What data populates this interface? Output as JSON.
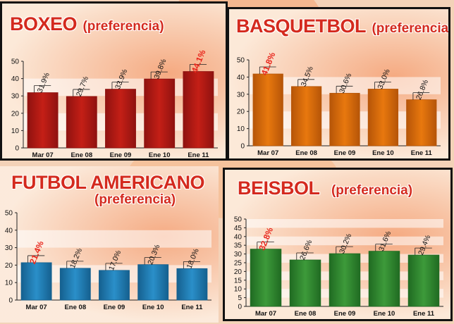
{
  "charts": [
    {
      "title": "BOXEO",
      "subtitle": "(preferencia)",
      "accent": "#d42a1e",
      "bar_color": "#c41f16",
      "bar_dark": "#8f1210",
      "highlight_label_color": "#e8251b",
      "chart_data": {
        "type": "bar",
        "title": "BOXEO (preferencia)",
        "categories": [
          "Mar 07",
          "Ene 08",
          "Ene 09",
          "Ene 10",
          "Ene 11"
        ],
        "values": [
          31.9,
          29.7,
          33.9,
          39.8,
          44.1
        ],
        "data_labels": [
          "31.9%",
          "29.7%",
          "33.9%",
          "39.8%",
          "44.1%"
        ],
        "highlight_index": 4,
        "yticks": [
          0,
          10,
          20,
          30,
          40,
          50
        ],
        "ylim": [
          0,
          50
        ],
        "xlabel": "",
        "ylabel": ""
      }
    },
    {
      "title": "BASQUETBOL",
      "subtitle": "(preferencia)",
      "accent": "#d42a1e",
      "bar_color": "#e8780e",
      "bar_dark": "#b65508",
      "highlight_label_color": "#e8251b",
      "chart_data": {
        "type": "bar",
        "title": "BASQUETBOL (preferencia)",
        "categories": [
          "Mar 07",
          "Ene 08",
          "Ene 09",
          "Ene 10",
          "Ene 11"
        ],
        "values": [
          41.8,
          34.5,
          30.6,
          33.0,
          26.8
        ],
        "data_labels": [
          "41.8%",
          "34.5%",
          "30.6%",
          "33.0%",
          "26.8%"
        ],
        "highlight_index": 0,
        "yticks": [
          0,
          10,
          20,
          30,
          40,
          50
        ],
        "ylim": [
          0,
          50
        ],
        "xlabel": "",
        "ylabel": ""
      }
    },
    {
      "title": "FUTBOL AMERICANO",
      "subtitle": "(preferencia)",
      "accent": "#d42a1e",
      "bar_color": "#2a8fc9",
      "bar_dark": "#15608f",
      "highlight_label_color": "#e8251b",
      "chart_data": {
        "type": "bar",
        "title": "FUTBOL AMERICANO (preferencia)",
        "categories": [
          "Mar 07",
          "Ene 08",
          "Ene 09",
          "Ene 10",
          "Ene 11"
        ],
        "values": [
          21.4,
          18.2,
          17.0,
          20.3,
          18.0
        ],
        "data_labels": [
          "21.4%",
          "18.2%",
          "17.0%",
          "20.3%",
          "18.0%"
        ],
        "highlight_index": 0,
        "yticks": [
          0,
          10,
          20,
          30,
          40,
          50
        ],
        "ylim": [
          0,
          50
        ],
        "xlabel": "",
        "ylabel": ""
      }
    },
    {
      "title": "BEISBOL",
      "subtitle": "(preferencia)",
      "accent": "#d42a1e",
      "bar_color": "#3d9a3a",
      "bar_dark": "#206b22",
      "highlight_label_color": "#e8251b",
      "chart_data": {
        "type": "bar",
        "title": "BEISBOL (preferencia)",
        "categories": [
          "Mar 07",
          "Ene 08",
          "Ene 09",
          "Ene 10",
          "Ene 11"
        ],
        "values": [
          32.8,
          26.6,
          30.2,
          31.6,
          29.4
        ],
        "data_labels": [
          "32.8%",
          "26.6%",
          "30.2%",
          "31.6%",
          "29.4%"
        ],
        "highlight_index": 0,
        "yticks": [
          0,
          5,
          10,
          15,
          20,
          25,
          30,
          35,
          40,
          45,
          50
        ],
        "ylim": [
          0,
          50
        ],
        "xlabel": "",
        "ylabel": ""
      }
    }
  ]
}
